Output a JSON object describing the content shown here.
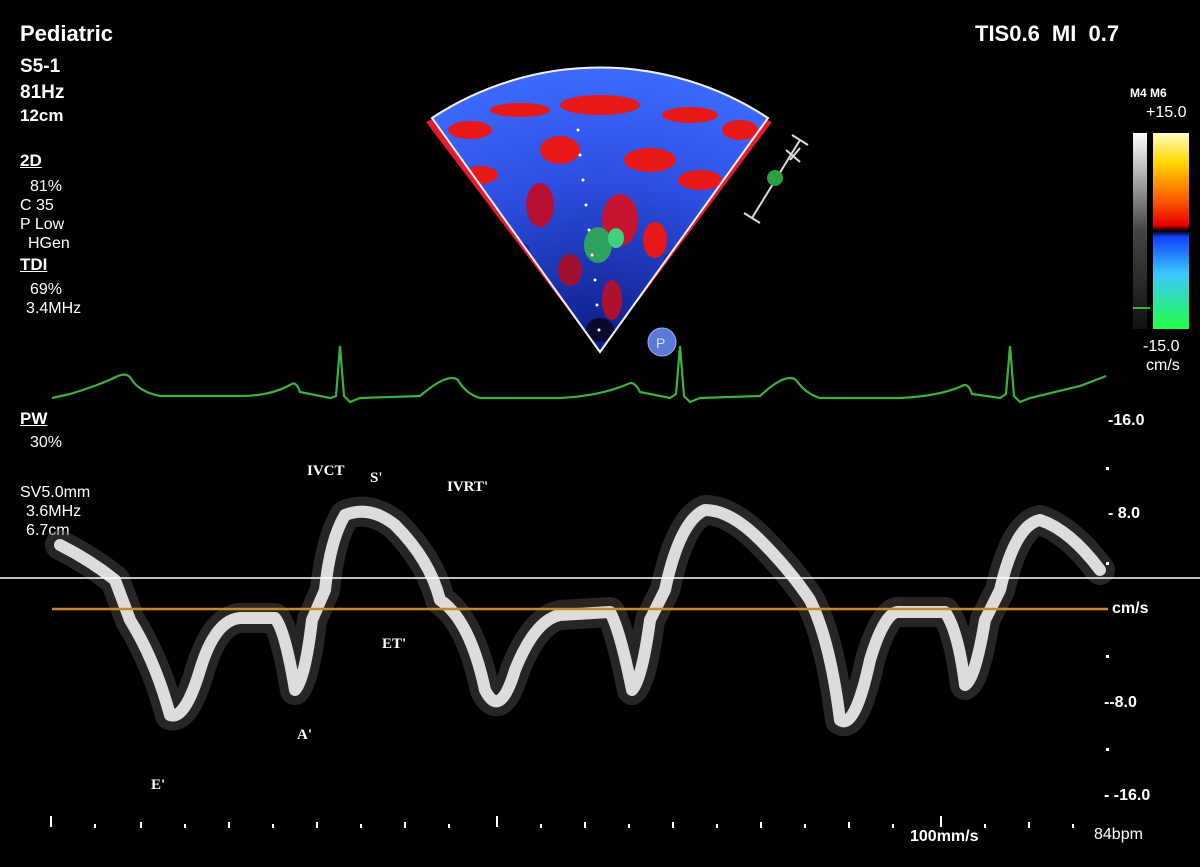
{
  "header": {
    "preset": "Pediatric",
    "probe": "S5-1",
    "frame_rate": "81Hz",
    "depth": "12cm",
    "indices": "TIS0.6   MI 0.7"
  },
  "settings_2d": {
    "title": "2D",
    "gain": "81%",
    "compression": "C 35",
    "persistence": "P Low",
    "freq_mode": "HGen"
  },
  "settings_tdi": {
    "title": "TDI",
    "gain": "69%",
    "freq": "3.4MHz"
  },
  "settings_pw": {
    "title": "PW",
    "gain": "30%",
    "sample_volume": "SV5.0mm",
    "freq": "3.6MHz",
    "depth": "6.7cm"
  },
  "color_bar": {
    "map": "M4 M6",
    "max": "+15.0",
    "min": "-15.0",
    "unit": "cm/s",
    "colors": [
      "#ffffff",
      "#ffd700",
      "#ff2a00",
      "#1e6bff",
      "#00ff7a"
    ]
  },
  "velocity_scale": {
    "top": "-16.0",
    "upper": "- 8.0",
    "unit": "cm/s",
    "lower": "--8.0",
    "bottom": "- -16.0"
  },
  "annotations": {
    "ivct": "IVCT",
    "s_prime": "S'",
    "ivrt": "IVRT'",
    "et": "ET'",
    "a_prime": "A'",
    "e_prime": "E'"
  },
  "probe_marker": "P",
  "sweep_speed": "100mm/s",
  "heart_rate": "84bpm",
  "colors": {
    "ecg": "#3bb33b",
    "baseline": "#c88a2a",
    "sector_blue": "#2e4fe0",
    "sector_red": "#e81818"
  }
}
